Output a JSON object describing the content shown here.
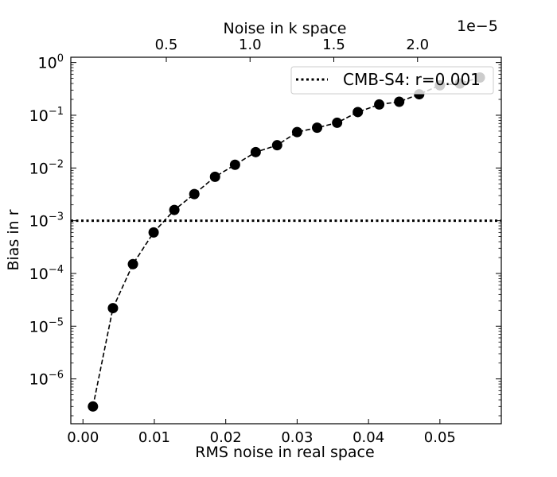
{
  "chart_data": {
    "type": "scatter",
    "xlabel": "RMS noise in real space",
    "ylabel": "Bias in r",
    "top_xlabel": "Noise in k space",
    "top_x_offset": "1e−5",
    "x_ticks": [
      "0.00",
      "0.01",
      "0.02",
      "0.03",
      "0.04",
      "0.05"
    ],
    "x_tick_values": [
      0.0,
      0.01,
      0.02,
      0.03,
      0.04,
      0.05
    ],
    "top_ticks": [
      "0.5",
      "1.0",
      "1.5",
      "2.0"
    ],
    "top_tick_values": [
      0.5,
      1.0,
      1.5,
      2.0
    ],
    "y_ticks": [
      "10^0",
      "10^-1",
      "10^-2",
      "10^-3",
      "10^-4",
      "10^-5",
      "10^-6"
    ],
    "y_tick_exponents": [
      0,
      -1,
      -2,
      -3,
      -4,
      -5,
      -6
    ],
    "xlim": [
      -0.0017,
      0.0586
    ],
    "ylim_log10": [
      -6.85,
      0.1
    ],
    "top_xlim": [
      -0.07,
      2.5
    ],
    "y_scale": "log",
    "legend_position": "top-right",
    "series": [
      {
        "x": [
          0.0014,
          0.0042,
          0.007,
          0.0099,
          0.0128,
          0.0156,
          0.0185,
          0.0213,
          0.0242,
          0.0272,
          0.03,
          0.0328,
          0.0356,
          0.0385,
          0.0415,
          0.0443,
          0.0471,
          0.05,
          0.0528,
          0.0556
        ],
        "y": [
          3e-07,
          2.2e-05,
          0.00015,
          0.0006,
          0.0016,
          0.0032,
          0.0068,
          0.0115,
          0.02,
          0.027,
          0.048,
          0.058,
          0.072,
          0.115,
          0.16,
          0.18,
          0.25,
          0.37,
          0.4,
          0.52
        ],
        "style": "black dashed line with filled circle markers",
        "color": "#000000"
      }
    ],
    "reference_line": {
      "name": "CMB-S4: r=0.001",
      "y": 0.001,
      "style": "dotted",
      "color": "#000000"
    }
  }
}
